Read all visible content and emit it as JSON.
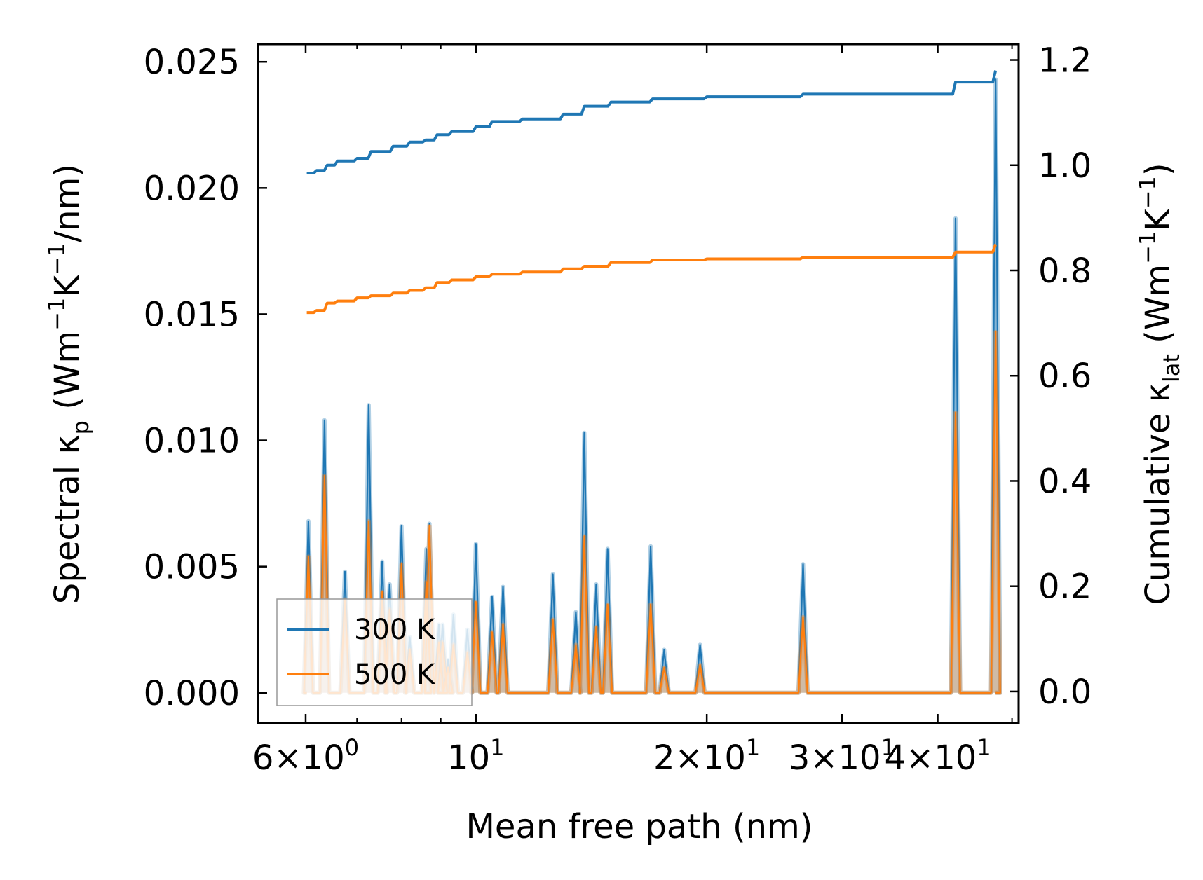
{
  "chart_data": {
    "type": "line",
    "xlabel": "Mean free path (nm)",
    "x_scale": "log",
    "xlim": [
      5.2,
      51.0
    ],
    "x_ticks": [
      {
        "value": 6,
        "mant": "6",
        "exp": "0"
      },
      {
        "value": 10,
        "mant": "",
        "exp": "1"
      },
      {
        "value": 20,
        "mant": "2",
        "exp": "1"
      },
      {
        "value": 30,
        "mant": "3",
        "exp": "1"
      },
      {
        "value": 40,
        "mant": "4",
        "exp": "1"
      }
    ],
    "y_left": {
      "label_text": "Spectral κ",
      "label_sub": "p",
      "label_units_open": " (Wm",
      "label_sup1": "−1",
      "label_mid": "K",
      "label_sup2": "−1",
      "label_units_close": "/nm)",
      "ylim": [
        -0.0012,
        0.0257
      ],
      "ticks": [
        "0.000",
        "0.005",
        "0.010",
        "0.015",
        "0.020",
        "0.025"
      ],
      "tick_values": [
        0,
        0.005,
        0.01,
        0.015,
        0.02,
        0.025
      ]
    },
    "y_right": {
      "label_text": "Cumulative κ",
      "label_sub": "lat",
      "label_units_open": " (Wm",
      "label_sup1": "−1",
      "label_mid": "K",
      "label_sup2": "−1",
      "label_units_close": ")",
      "ylim": [
        -0.06,
        1.23
      ],
      "ticks": [
        "0.0",
        "0.2",
        "0.4",
        "0.6",
        "0.8",
        "1.0",
        "1.2"
      ],
      "tick_values": [
        0,
        0.2,
        0.4,
        0.6,
        0.8,
        1.0,
        1.2
      ]
    },
    "legend": {
      "position": "lower-left",
      "entries": [
        "300 K",
        "500 K"
      ]
    },
    "series": [
      {
        "name": "300 K",
        "color": "#1f77b4",
        "spectral_peaks": [
          [
            6.05,
            0.0068
          ],
          [
            6.35,
            0.0108
          ],
          [
            6.75,
            0.0048
          ],
          [
            7.25,
            0.0114
          ],
          [
            7.55,
            0.0052
          ],
          [
            7.72,
            0.0043
          ],
          [
            8.0,
            0.0066
          ],
          [
            8.2,
            0.0022
          ],
          [
            8.62,
            0.0057
          ],
          [
            8.7,
            0.0067
          ],
          [
            8.95,
            0.0027
          ],
          [
            9.05,
            0.0027
          ],
          [
            9.2,
            0.0013
          ],
          [
            9.35,
            0.0031
          ],
          [
            9.75,
            0.0025
          ],
          [
            10.0,
            0.0059
          ],
          [
            10.5,
            0.0038
          ],
          [
            10.85,
            0.0042
          ],
          [
            12.6,
            0.0047
          ],
          [
            13.5,
            0.0032
          ],
          [
            13.85,
            0.0103
          ],
          [
            14.35,
            0.0043
          ],
          [
            14.85,
            0.0057
          ],
          [
            16.9,
            0.0058
          ],
          [
            17.6,
            0.0017
          ],
          [
            19.6,
            0.0019
          ],
          [
            26.7,
            0.0051
          ],
          [
            42.2,
            0.0188
          ],
          [
            47.6,
            0.0243
          ]
        ],
        "cumulative": [
          [
            6.02,
            0.985
          ],
          [
            6.2,
            0.99
          ],
          [
            6.4,
            1.0
          ],
          [
            6.6,
            1.008
          ],
          [
            7.0,
            1.013
          ],
          [
            7.3,
            1.026
          ],
          [
            7.8,
            1.036
          ],
          [
            8.2,
            1.044
          ],
          [
            8.6,
            1.048
          ],
          [
            8.9,
            1.058
          ],
          [
            9.3,
            1.064
          ],
          [
            10.0,
            1.073
          ],
          [
            10.5,
            1.083
          ],
          [
            11.5,
            1.088
          ],
          [
            13.0,
            1.097
          ],
          [
            13.85,
            1.112
          ],
          [
            15.0,
            1.12
          ],
          [
            17.0,
            1.126
          ],
          [
            20.0,
            1.13
          ],
          [
            26.7,
            1.135
          ],
          [
            42.2,
            1.158
          ],
          [
            47.6,
            1.18
          ]
        ]
      },
      {
        "name": "500 K",
        "color": "#ff7f0e",
        "spectral_peaks": [
          [
            6.05,
            0.0054
          ],
          [
            6.35,
            0.0086
          ],
          [
            6.75,
            0.0037
          ],
          [
            7.25,
            0.0068
          ],
          [
            7.55,
            0.004
          ],
          [
            7.72,
            0.0033
          ],
          [
            8.0,
            0.0051
          ],
          [
            8.2,
            0.0017
          ],
          [
            8.62,
            0.0044
          ],
          [
            8.7,
            0.0066
          ],
          [
            8.95,
            0.002
          ],
          [
            9.05,
            0.002
          ],
          [
            9.2,
            0.001
          ],
          [
            9.35,
            0.0019
          ],
          [
            9.75,
            0.0016
          ],
          [
            10.0,
            0.0036
          ],
          [
            10.5,
            0.0024
          ],
          [
            10.85,
            0.0027
          ],
          [
            12.6,
            0.0029
          ],
          [
            13.5,
            0.0019
          ],
          [
            13.85,
            0.0062
          ],
          [
            14.35,
            0.0026
          ],
          [
            14.85,
            0.0035
          ],
          [
            16.9,
            0.0035
          ],
          [
            17.6,
            0.001
          ],
          [
            19.6,
            0.0011
          ],
          [
            26.7,
            0.003
          ],
          [
            42.2,
            0.0111
          ],
          [
            47.6,
            0.0143
          ]
        ],
        "cumulative": [
          [
            6.02,
            0.72
          ],
          [
            6.2,
            0.724
          ],
          [
            6.4,
            0.738
          ],
          [
            6.6,
            0.742
          ],
          [
            7.0,
            0.748
          ],
          [
            7.3,
            0.752
          ],
          [
            7.8,
            0.757
          ],
          [
            8.2,
            0.762
          ],
          [
            8.6,
            0.767
          ],
          [
            8.9,
            0.777
          ],
          [
            9.3,
            0.782
          ],
          [
            10.0,
            0.788
          ],
          [
            10.5,
            0.793
          ],
          [
            11.5,
            0.797
          ],
          [
            13.0,
            0.803
          ],
          [
            13.85,
            0.808
          ],
          [
            15.0,
            0.815
          ],
          [
            17.0,
            0.82
          ],
          [
            20.0,
            0.822
          ],
          [
            26.7,
            0.825
          ],
          [
            42.2,
            0.835
          ],
          [
            47.6,
            0.85
          ]
        ]
      }
    ]
  }
}
